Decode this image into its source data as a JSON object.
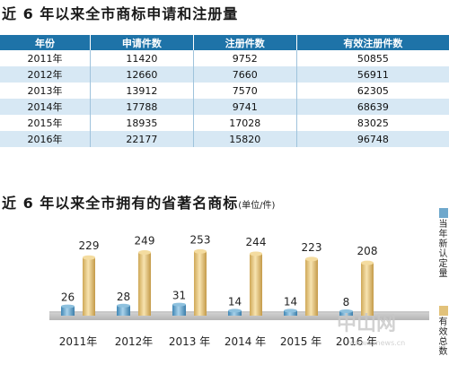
{
  "table_title": "近 6 年以来全市商标申请和注册量",
  "table": {
    "headers": [
      "年份",
      "申请件数",
      "注册件数",
      "有效注册件数"
    ],
    "rows": [
      [
        "2011年",
        "11420",
        "9752",
        "50855"
      ],
      [
        "2012年",
        "12660",
        "7660",
        "56911"
      ],
      [
        "2013年",
        "13912",
        "7570",
        "62305"
      ],
      [
        "2014年",
        "17788",
        "9741",
        "68639"
      ],
      [
        "2015年",
        "18935",
        "17028",
        "83025"
      ],
      [
        "2016年",
        "22177",
        "15820",
        "96748"
      ]
    ]
  },
  "chart_title": "近 6 年以来全市拥有的省著名商标",
  "chart_unit": "(单位/件)",
  "legend": {
    "items": [
      {
        "label": "当年新认定量",
        "color": "#6fa8cc"
      },
      {
        "label": "有效总数",
        "color": "#e2c27a"
      }
    ]
  },
  "watermark": "中山网 www.zsnews.cn",
  "chart_data": {
    "type": "bar",
    "title": "近 6 年以来全市拥有的省著名商标",
    "unit": "(单位/件)",
    "categories": [
      "2011年",
      "2012年",
      "2013 年",
      "2014 年",
      "2015 年",
      "2016 年"
    ],
    "series": [
      {
        "name": "当年新认定量",
        "values": [
          26,
          28,
          31,
          14,
          14,
          8
        ],
        "color": "#6fa8cc"
      },
      {
        "name": "有效总数",
        "values": [
          229,
          249,
          253,
          244,
          223,
          208
        ],
        "color": "#e2c27a"
      }
    ],
    "legend_position": "right"
  }
}
